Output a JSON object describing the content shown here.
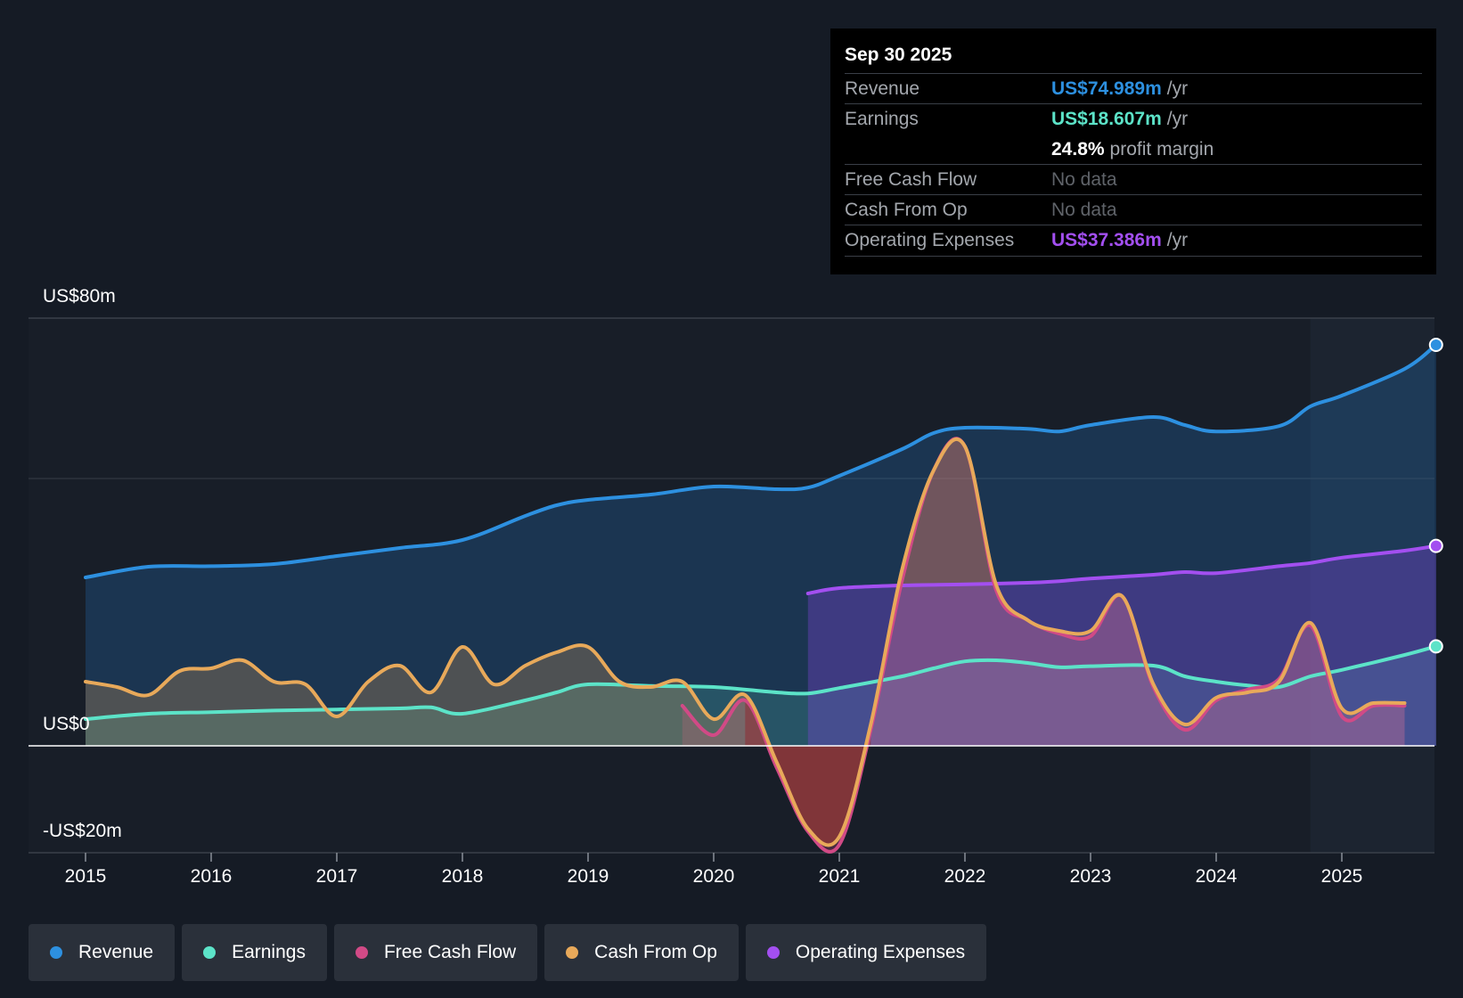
{
  "chart_data": {
    "type": "line",
    "title": "",
    "xlabel": "",
    "ylabel": "",
    "ylim": [
      -20,
      80
    ],
    "xlim": [
      2015,
      2025.75
    ],
    "x_ticks": [
      "2015",
      "2016",
      "2017",
      "2018",
      "2019",
      "2020",
      "2021",
      "2022",
      "2023",
      "2024",
      "2025"
    ],
    "y_tick_labels": {
      "top": "US$80m",
      "zero": "US$0",
      "bottom": "-US$20m"
    },
    "legend_position": "bottom-left",
    "series": [
      {
        "name": "Revenue",
        "color": "#2d90e0",
        "x": [
          2015,
          2015.5,
          2016,
          2016.5,
          2017,
          2017.5,
          2018,
          2018.5,
          2018.75,
          2019,
          2019.5,
          2020,
          2020.5,
          2020.75,
          2021,
          2021.5,
          2021.75,
          2022,
          2022.5,
          2022.75,
          2023,
          2023.5,
          2023.75,
          2024,
          2024.5,
          2024.75,
          2025,
          2025.5,
          2025.75
        ],
        "y": [
          31.5,
          33.5,
          33.6,
          34,
          35.5,
          37,
          38.5,
          43,
          45,
          46,
          47,
          48.5,
          48,
          48.3,
          50.5,
          55.5,
          58.5,
          59.5,
          59.3,
          58.8,
          60,
          61.5,
          60,
          58.8,
          59.8,
          63.5,
          65.5,
          70.5,
          75
        ]
      },
      {
        "name": "Earnings",
        "color": "#5ce3c8",
        "x": [
          2015,
          2015.5,
          2016,
          2016.5,
          2017,
          2017.5,
          2017.75,
          2018,
          2018.5,
          2018.75,
          2019,
          2019.5,
          2020,
          2020.5,
          2020.75,
          2021,
          2021.5,
          2021.75,
          2022,
          2022.25,
          2022.5,
          2022.75,
          2023,
          2023.5,
          2023.75,
          2024,
          2024.25,
          2024.5,
          2024.75,
          2025,
          2025.5,
          2025.75
        ],
        "y": [
          5,
          6,
          6.3,
          6.6,
          6.8,
          7,
          7.2,
          6,
          8.5,
          10,
          11.5,
          11.2,
          11,
          10,
          9.8,
          10.8,
          13,
          14.5,
          15.8,
          16,
          15.5,
          14.7,
          14.9,
          15,
          13,
          12,
          11.3,
          11,
          13,
          14.2,
          17,
          18.6
        ]
      },
      {
        "name": "Free Cash Flow",
        "color": "#d14a86",
        "x": [
          2019.75,
          2020,
          2020.25,
          2020.5,
          2020.75,
          2021,
          2021.25,
          2021.5,
          2021.75,
          2022,
          2022.25,
          2022.5,
          2022.75,
          2023,
          2023.25,
          2023.5,
          2023.75,
          2024,
          2024.25,
          2024.5,
          2024.75,
          2025,
          2025.25,
          2025.5
        ],
        "y": [
          7.5,
          2,
          8.5,
          -4,
          -16,
          -18.5,
          3,
          31,
          51.5,
          56,
          29,
          23.5,
          21,
          20.5,
          28,
          11,
          3,
          8.5,
          10.5,
          12.5,
          22.5,
          5.5,
          7.5,
          7.5
        ]
      },
      {
        "name": "Cash From Op",
        "color": "#e8a95a",
        "x": [
          2015,
          2015.25,
          2015.5,
          2015.75,
          2016,
          2016.25,
          2016.5,
          2016.75,
          2017,
          2017.25,
          2017.5,
          2017.75,
          2018,
          2018.25,
          2018.5,
          2018.75,
          2019,
          2019.25,
          2019.5,
          2019.75,
          2020,
          2020.25,
          2020.5,
          2020.75,
          2021,
          2021.25,
          2021.5,
          2021.75,
          2022,
          2022.25,
          2022.5,
          2022.75,
          2023,
          2023.25,
          2023.5,
          2023.75,
          2024,
          2024.25,
          2024.5,
          2024.75,
          2025,
          2025.25,
          2025.5
        ],
        "y": [
          12,
          11,
          9.5,
          14,
          14.5,
          16,
          12,
          11.5,
          5.5,
          12,
          15,
          10,
          18.5,
          11.5,
          15,
          17.5,
          18.5,
          12,
          11,
          12,
          5,
          9.5,
          -3,
          -15.5,
          -17,
          4,
          33,
          51.5,
          56,
          30,
          23.5,
          21.5,
          21.5,
          28,
          11.5,
          4,
          9,
          10,
          12,
          23,
          7,
          8,
          8
        ]
      },
      {
        "name": "Operating Expenses",
        "color": "#a34ff0",
        "x": [
          2020.75,
          2021,
          2021.5,
          2022,
          2022.5,
          2022.75,
          2023,
          2023.5,
          2023.75,
          2024,
          2024.5,
          2024.75,
          2025,
          2025.5,
          2025.75
        ],
        "y": [
          28.5,
          29.5,
          30,
          30.2,
          30.5,
          30.8,
          31.3,
          32,
          32.5,
          32.3,
          33.6,
          34.2,
          35.2,
          36.5,
          37.4
        ]
      }
    ]
  },
  "tooltip": {
    "date": "Sep 30 2025",
    "rows": {
      "revenue": {
        "label": "Revenue",
        "value": "US$74.989m",
        "unit": "/yr",
        "color": "#2d90e0"
      },
      "earnings": {
        "label": "Earnings",
        "value": "US$18.607m",
        "unit": "/yr",
        "color": "#5ce3c8"
      },
      "margin": {
        "value": "24.8%",
        "unit": "profit margin"
      },
      "fcf": {
        "label": "Free Cash Flow",
        "value": "No data"
      },
      "cfo": {
        "label": "Cash From Op",
        "value": "No data"
      },
      "opex": {
        "label": "Operating Expenses",
        "value": "US$37.386m",
        "unit": "/yr",
        "color": "#a34ff0"
      }
    }
  },
  "legend": {
    "revenue": "Revenue",
    "earnings": "Earnings",
    "fcf": "Free Cash Flow",
    "cfo": "Cash From Op",
    "opex": "Operating Expenses"
  }
}
